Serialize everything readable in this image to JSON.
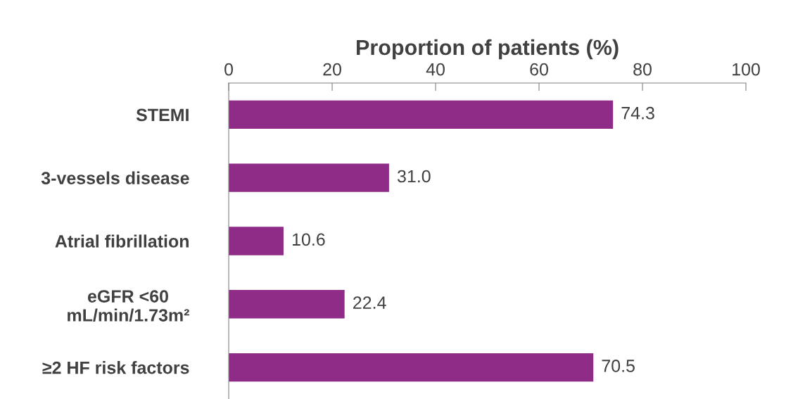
{
  "chart_data": {
    "type": "bar",
    "orientation": "horizontal",
    "xlabel": "Proportion of patients (%)",
    "categories": [
      "STEMI",
      "3-vessels disease",
      "Atrial fibrillation",
      "eGFR <60\nmL/min/1.73m²",
      "≥2 HF risk factors"
    ],
    "values": [
      74.3,
      31.0,
      10.6,
      22.4,
      70.5
    ],
    "value_labels": [
      "74.3",
      "31.0",
      "10.6",
      "22.4",
      "70.5"
    ],
    "color": "#8e2c87",
    "xlim": [
      0,
      100
    ],
    "xticks": [
      0,
      20,
      40,
      60,
      80,
      100
    ],
    "grid": false
  }
}
